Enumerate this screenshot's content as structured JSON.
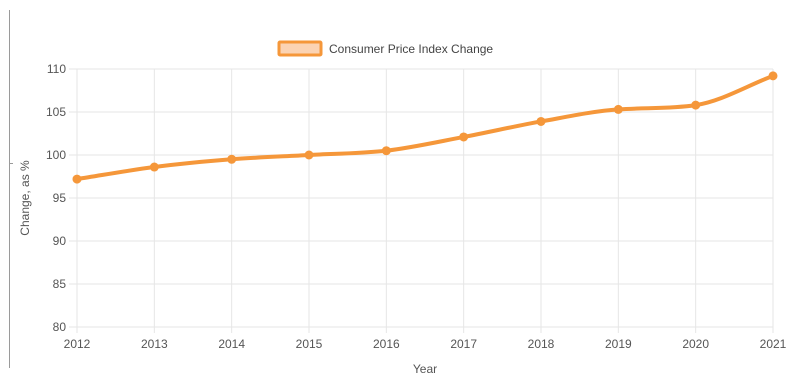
{
  "chart_data": {
    "type": "line",
    "title": "",
    "xlabel": "Year",
    "ylabel": "Change, as %",
    "categories": [
      "2012",
      "2013",
      "2014",
      "2015",
      "2016",
      "2017",
      "2018",
      "2019",
      "2020",
      "2021"
    ],
    "series": [
      {
        "name": "Consumer Price Index Change",
        "values": [
          97.2,
          98.6,
          99.5,
          100.0,
          100.5,
          102.1,
          103.9,
          105.3,
          105.8,
          109.2
        ],
        "color": "#f5973a",
        "fill": "#fbd3b3"
      }
    ],
    "ylim": [
      80,
      110
    ],
    "yticks": [
      80,
      85,
      90,
      95,
      100,
      105,
      110
    ],
    "grid": true,
    "legend": "top-center",
    "grid_color": "#e6e6e6"
  }
}
